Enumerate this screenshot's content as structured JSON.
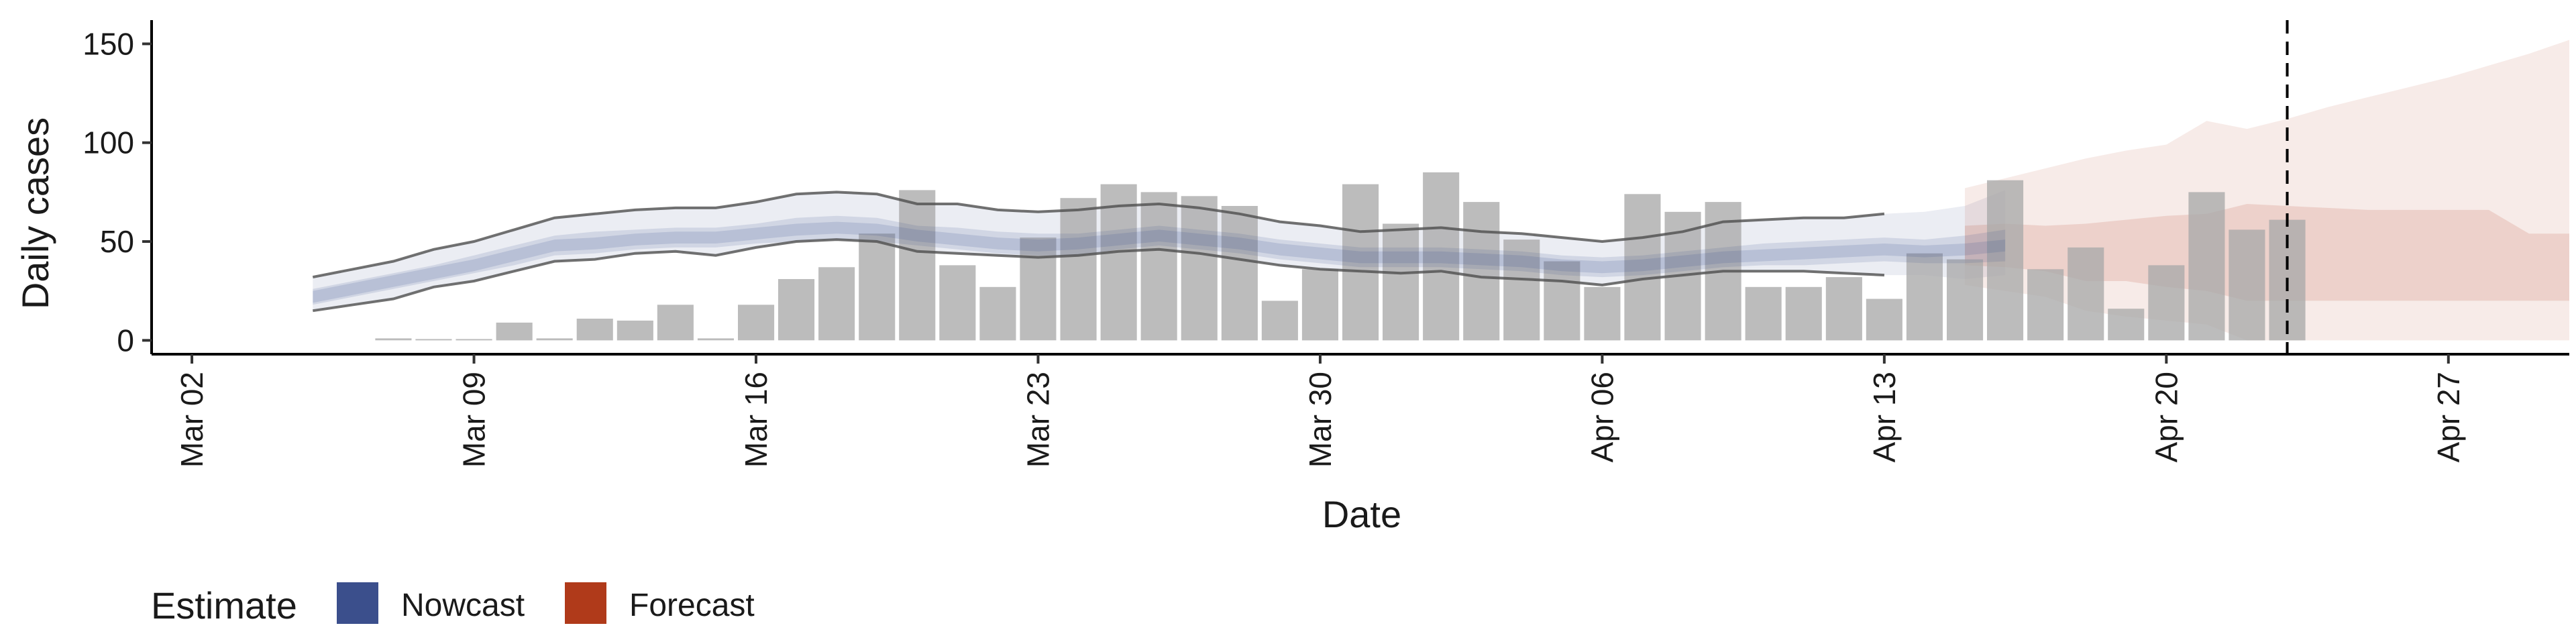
{
  "chart_data": {
    "type": "bar",
    "xlabel": "Date",
    "ylabel": "Daily cases",
    "ylim": [
      -7,
      162
    ],
    "xlim": [
      "2020-03-01",
      "2020-04-30"
    ],
    "y_ticks": [
      0,
      50,
      100,
      150
    ],
    "x_ticks": [
      {
        "date": "2020-03-02",
        "label": "Mar 02"
      },
      {
        "date": "2020-03-09",
        "label": "Mar 09"
      },
      {
        "date": "2020-03-16",
        "label": "Mar 16"
      },
      {
        "date": "2020-03-23",
        "label": "Mar 23"
      },
      {
        "date": "2020-03-30",
        "label": "Mar 30"
      },
      {
        "date": "2020-04-06",
        "label": "Apr 06"
      },
      {
        "date": "2020-04-13",
        "label": "Apr 13"
      },
      {
        "date": "2020-04-20",
        "label": "Apr 20"
      },
      {
        "date": "2020-04-27",
        "label": "Apr 27"
      }
    ],
    "grid": false,
    "reference_line_date": "2020-04-23",
    "observed_cases": {
      "start_date": "2020-03-07",
      "values": [
        1,
        0,
        0,
        9,
        1,
        11,
        10,
        18,
        1,
        18,
        31,
        37,
        54,
        76,
        38,
        27,
        52,
        72,
        79,
        75,
        73,
        68,
        20,
        36,
        79,
        59,
        85,
        70,
        51,
        40,
        27,
        74,
        65,
        70,
        27,
        27,
        32,
        21,
        44,
        41,
        81,
        36,
        47,
        16,
        38,
        75,
        56,
        61
      ],
      "color": "#a9a9a9"
    },
    "nowcast": {
      "color": "#3b4f8c",
      "start_date": "2020-03-05",
      "upper90": [
        32,
        36,
        40,
        46,
        50,
        56,
        62,
        64,
        66,
        67,
        67,
        70,
        74,
        75,
        74,
        69,
        69,
        66,
        65,
        66,
        68,
        69,
        67,
        64,
        60,
        58,
        55,
        56,
        57,
        55,
        54,
        52,
        50,
        52,
        55,
        60,
        61,
        62,
        62,
        64,
        65,
        68,
        76
      ],
      "upper50": [
        26,
        30,
        34,
        38,
        43,
        48,
        53,
        55,
        56,
        57,
        57,
        59,
        62,
        63,
        62,
        58,
        57,
        55,
        54,
        54,
        56,
        58,
        56,
        54,
        51,
        49,
        47,
        47,
        47,
        46,
        45,
        43,
        42,
        43,
        45,
        47,
        49,
        50,
        51,
        52,
        51,
        53,
        56
      ],
      "median": [
        22,
        26,
        30,
        34,
        38,
        43,
        48,
        49,
        51,
        52,
        52,
        54,
        56,
        57,
        56,
        53,
        51,
        49,
        48,
        49,
        51,
        53,
        51,
        49,
        46,
        44,
        42,
        42,
        42,
        41,
        40,
        38,
        37,
        38,
        40,
        42,
        43,
        44,
        45,
        46,
        45,
        46,
        48
      ],
      "lower50": [
        18,
        22,
        26,
        30,
        34,
        38,
        43,
        44,
        46,
        47,
        47,
        49,
        50,
        51,
        50,
        48,
        46,
        44,
        43,
        43,
        46,
        48,
        46,
        44,
        41,
        39,
        37,
        37,
        37,
        36,
        35,
        33,
        32,
        33,
        35,
        37,
        38,
        38,
        39,
        40,
        39,
        39,
        40
      ],
      "lower90": [
        15,
        18,
        21,
        27,
        30,
        35,
        40,
        41,
        44,
        45,
        43,
        47,
        50,
        51,
        50,
        45,
        44,
        43,
        42,
        43,
        45,
        46,
        44,
        41,
        38,
        36,
        35,
        34,
        35,
        32,
        31,
        30,
        28,
        31,
        33,
        35,
        35,
        35,
        34,
        33,
        33,
        31,
        33
      ]
    },
    "forecast": {
      "color": "#b03a1a",
      "start_date": "2020-04-15",
      "upper90": [
        77,
        82,
        87,
        92,
        96,
        99,
        111,
        107,
        112,
        118,
        123,
        128,
        133,
        139,
        145,
        152
      ],
      "upper50": [
        58,
        59,
        58,
        59,
        61,
        63,
        64,
        69,
        68,
        67,
        66,
        66,
        66,
        66,
        54,
        54
      ],
      "lower50": [
        38,
        37,
        35,
        30,
        30,
        27,
        25,
        20,
        20,
        20,
        20,
        20,
        20,
        20,
        20,
        20
      ],
      "lower90": [
        28,
        25,
        22,
        15,
        12,
        10,
        8,
        0,
        0,
        0,
        0,
        0,
        0,
        0,
        0,
        0
      ]
    }
  },
  "legend": {
    "title": "Estimate",
    "items": [
      {
        "label": "Nowcast",
        "color": "#3b4f8c"
      },
      {
        "label": "Forecast",
        "color": "#b03a1a"
      }
    ]
  }
}
